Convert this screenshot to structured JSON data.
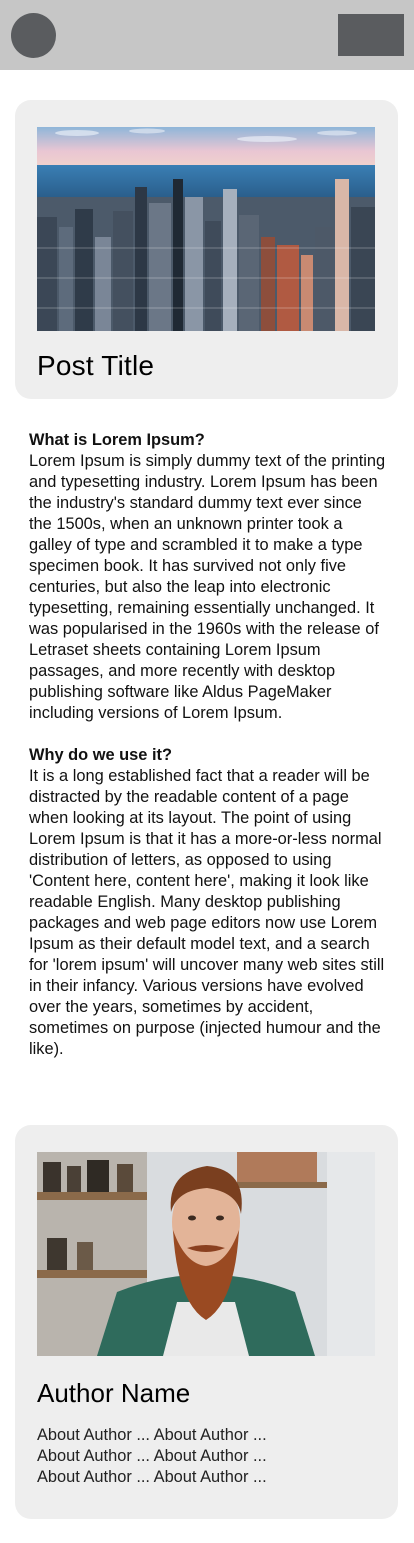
{
  "header": {
    "avatar_icon": "avatar-circle",
    "menu_icon": "menu-rectangle"
  },
  "post": {
    "image_subject": "city-skyline",
    "title": "Post Title"
  },
  "article": {
    "sections": [
      {
        "heading": "What is Lorem Ipsum?",
        "body": "Lorem Ipsum is simply dummy text of the printing and typesetting industry. Lorem Ipsum has been the industry's standard dummy text ever since the 1500s, when an unknown printer took a galley of type and scrambled it to make a type specimen book. It has survived not only five centuries, but also the leap into electronic typesetting, remaining essentially unchanged. It was popularised in the 1960s with the release of Letraset sheets containing Lorem Ipsum passages, and more recently with desktop publishing software like Aldus PageMaker including versions of Lorem Ipsum."
      },
      {
        "heading": "Why do we use it?",
        "body": "It is a long established fact that a reader will be distracted by the readable content of a page when looking at its layout. The point of using Lorem Ipsum is that it has a more-or-less normal distribution of letters, as opposed to using 'Content here, content here', making it look like readable English. Many desktop publishing packages and web page editors now use Lorem Ipsum as their default model text, and a search for 'lorem ipsum' will uncover many web sites still in their infancy. Various versions have evolved over the years, sometimes by accident, sometimes on purpose (injected humour and the like)."
      }
    ]
  },
  "author": {
    "image_subject": "bearded-man-portrait",
    "name": "Author Name",
    "about_lines": [
      "About Author ... About Author ...",
      "About Author ... About Author ...",
      "About Author ... About Author ..."
    ]
  },
  "colors": {
    "topbar": "#c6c6c6",
    "header_controls": "#5a5c5f",
    "card_bg": "#eeeeee"
  }
}
